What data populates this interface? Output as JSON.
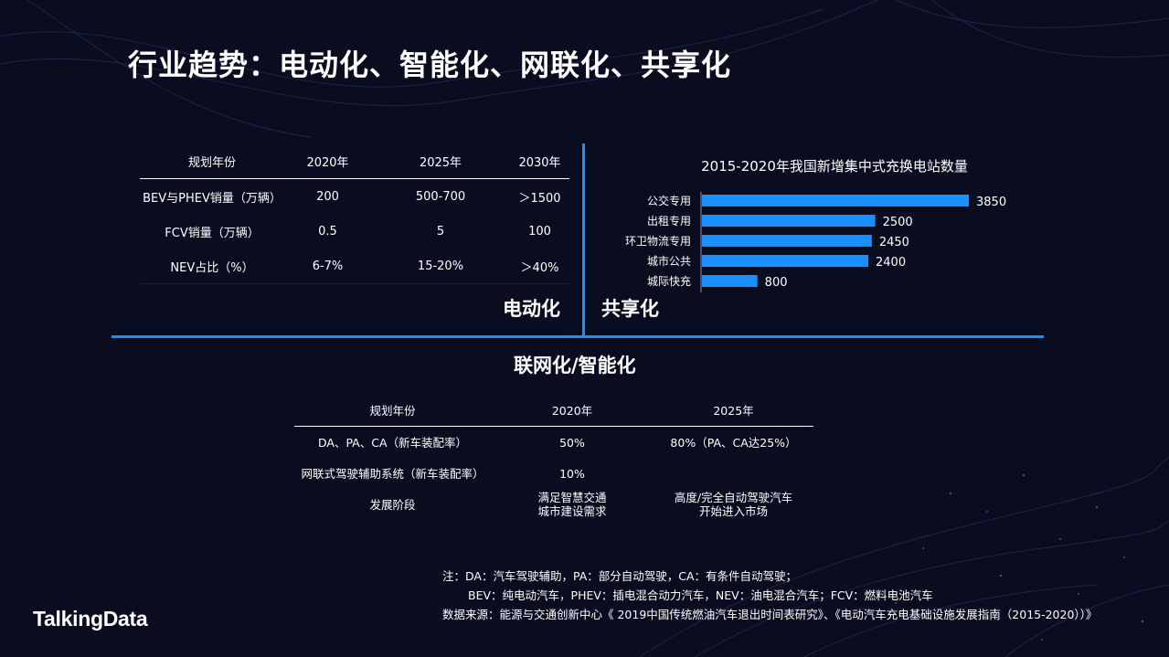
{
  "title": "行业趋势：电动化、智能化、网联化、共享化",
  "table1": {
    "headers": [
      "规划年份",
      "2020年",
      "2025年",
      "2030年"
    ],
    "rows": [
      [
        "BEV与PHEV销量（万辆）",
        "200",
        "500-700",
        "＞1500"
      ],
      [
        "FCV销量（万辆）",
        "0.5",
        "5",
        "100"
      ],
      [
        "NEV占比（%）",
        "6-7%",
        "15-20%",
        "＞40%"
      ]
    ]
  },
  "labels": {
    "electrification": "电动化",
    "sharing": "共享化",
    "connected": "联网化/智能化"
  },
  "chart_data": {
    "type": "bar",
    "orientation": "horizontal",
    "title": "2015-2020年我国新增集中式充换电站数量",
    "categories": [
      "公交专用",
      "出租专用",
      "环卫物流专用",
      "城市公共",
      "城际快充"
    ],
    "values": [
      3850,
      2500,
      2450,
      2400,
      800
    ],
    "xlabel": "",
    "ylabel": "",
    "bar_color": "#1a8fff",
    "data_labels": true,
    "grid": false
  },
  "table2": {
    "headers": [
      "规划年份",
      "2020年",
      "2025年"
    ],
    "rows": [
      [
        "DA、PA、CA（新车装配率）",
        "50%",
        "80%（PA、CA达25%）"
      ],
      [
        "网联式驾驶辅助系统（新车装配率）",
        "10%",
        ""
      ],
      [
        "发展阶段",
        "满足智慧交通城市建设需求",
        "高度/完全自动驾驶汽车开始进入市场"
      ]
    ]
  },
  "notes": {
    "line1": "注：DA：汽车驾驶辅助，PA：部分自动驾驶，CA：有条件自动驾驶；",
    "line2": "BEV：纯电动汽车，PHEV：插电混合动力汽车，NEV：油电混合汽车；FCV：燃料电池汽车",
    "line3": "数据来源：能源与交通创新中心《 2019中国传统燃油汽车退出时间表研究》、《电动汽车充电基础设施发展指南（2015-2020））》"
  },
  "logo": "TalkingData",
  "colors": {
    "background": "#0a0d1f",
    "accent": "#1a8fff",
    "text": "#ffffff"
  }
}
